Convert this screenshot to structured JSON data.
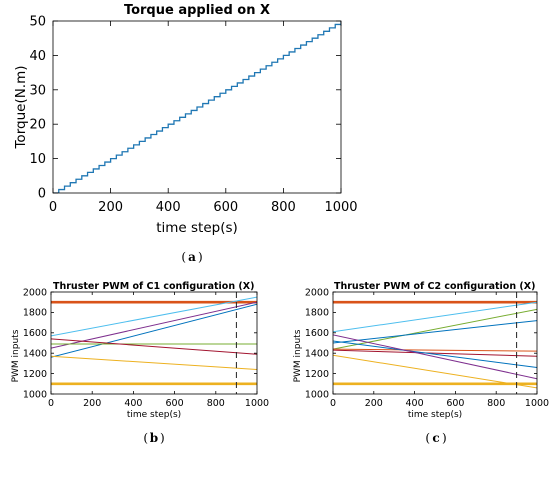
{
  "chart_data": [
    {
      "id": "a",
      "type": "line",
      "title": "Torque applied on X",
      "xlabel": "time step(s)",
      "ylabel": "Torque(N.m)",
      "xlim": [
        0,
        1000
      ],
      "ylim": [
        0,
        50
      ],
      "xticks": [
        0,
        200,
        400,
        600,
        800,
        1000
      ],
      "yticks": [
        0,
        10,
        20,
        30,
        40,
        50
      ],
      "caption": "a",
      "series": [
        {
          "color": "#1f77b4",
          "shape": "staircase",
          "start": 0,
          "step_x": 20,
          "step_y": 1,
          "x_end": 1000,
          "y_end": 50
        }
      ]
    },
    {
      "id": "b",
      "type": "line",
      "title": "Thruster PWM of C1 configuration (X)",
      "xlabel": "time step(s)",
      "ylabel": "PWM inputs",
      "xlim": [
        0,
        1000
      ],
      "ylim": [
        1000,
        2000
      ],
      "xticks": [
        0,
        200,
        400,
        600,
        800,
        1000
      ],
      "yticks": [
        1000,
        1200,
        1400,
        1600,
        1800,
        2000
      ],
      "vline": 900,
      "caption": "b",
      "series": [
        {
          "color": "#d95319",
          "x": [
            0,
            1000
          ],
          "y": [
            1900,
            1900
          ],
          "thick": true
        },
        {
          "color": "#edb120",
          "x": [
            0,
            1000
          ],
          "y": [
            1100,
            1100
          ],
          "thick": true
        },
        {
          "color": "#4dbeee",
          "x": [
            0,
            1000
          ],
          "y": [
            1570,
            1950
          ]
        },
        {
          "color": "#7e2f8e",
          "x": [
            0,
            1000
          ],
          "y": [
            1450,
            1900
          ]
        },
        {
          "color": "#0072bd",
          "x": [
            0,
            1000
          ],
          "y": [
            1360,
            1880
          ]
        },
        {
          "color": "#77ac30",
          "x": [
            0,
            1000
          ],
          "y": [
            1490,
            1490
          ]
        },
        {
          "color": "#a2142f",
          "x": [
            0,
            1000
          ],
          "y": [
            1540,
            1390
          ]
        },
        {
          "color": "#edb120",
          "x": [
            0,
            1000
          ],
          "y": [
            1370,
            1240
          ]
        }
      ]
    },
    {
      "id": "c",
      "type": "line",
      "title": "Thruster PWM of C2 configuration (X)",
      "xlabel": "time step(s)",
      "ylabel": "PWM inputs",
      "xlim": [
        0,
        1000
      ],
      "ylim": [
        1000,
        2000
      ],
      "xticks": [
        0,
        200,
        400,
        600,
        800,
        1000
      ],
      "yticks": [
        1000,
        1200,
        1400,
        1600,
        1800,
        2000
      ],
      "vline": 900,
      "caption": "c",
      "series": [
        {
          "color": "#d95319",
          "x": [
            0,
            1000
          ],
          "y": [
            1900,
            1900
          ],
          "thick": true
        },
        {
          "color": "#edb120",
          "x": [
            0,
            1000
          ],
          "y": [
            1100,
            1100
          ],
          "thick": true
        },
        {
          "color": "#4dbeee",
          "x": [
            0,
            1000
          ],
          "y": [
            1610,
            1900
          ]
        },
        {
          "color": "#77ac30",
          "x": [
            0,
            1000
          ],
          "y": [
            1440,
            1830
          ]
        },
        {
          "color": "#0072bd",
          "x": [
            0,
            1000
          ],
          "y": [
            1500,
            1720
          ]
        },
        {
          "color": "#d95319",
          "x": [
            0,
            1000
          ],
          "y": [
            1440,
            1420
          ]
        },
        {
          "color": "#a2142f",
          "x": [
            0,
            1000
          ],
          "y": [
            1430,
            1370
          ]
        },
        {
          "color": "#0072bd",
          "x": [
            0,
            1000
          ],
          "y": [
            1520,
            1260
          ]
        },
        {
          "color": "#7e2f8e",
          "x": [
            0,
            1000
          ],
          "y": [
            1580,
            1150
          ]
        },
        {
          "color": "#edb120",
          "x": [
            0,
            1000
          ],
          "y": [
            1380,
            1060
          ]
        }
      ]
    }
  ]
}
